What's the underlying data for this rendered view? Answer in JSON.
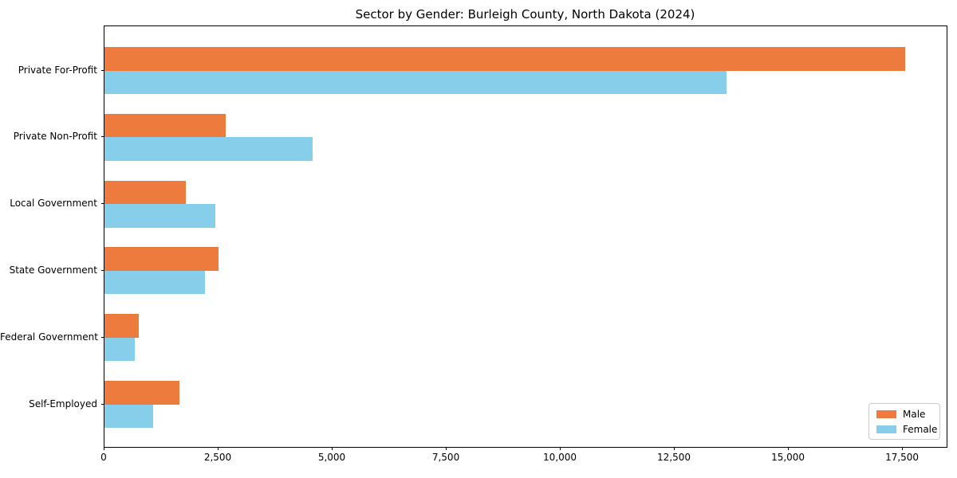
{
  "title": "Sector by Gender: Burleigh County, North Dakota (2024)",
  "chart_data": {
    "type": "bar",
    "orientation": "horizontal",
    "title": "Sector by Gender: Burleigh County, North Dakota (2024)",
    "categories": [
      "Private For-Profit",
      "Private Non-Profit",
      "Local Government",
      "State Government",
      "Federal Government",
      "Self-Employed"
    ],
    "series": [
      {
        "name": "Male",
        "color": "#ec7b3d",
        "values": [
          17550,
          2660,
          1780,
          2500,
          750,
          1640
        ]
      },
      {
        "name": "Female",
        "color": "#87ceeb",
        "values": [
          13640,
          4560,
          2430,
          2200,
          665,
          1070
        ]
      }
    ],
    "xlabel": "",
    "ylabel": "",
    "xlim": [
      0,
      18460
    ],
    "x_ticks": [
      0,
      2500,
      5000,
      7500,
      10000,
      12500,
      15000,
      17500
    ],
    "x_tick_labels": [
      "0",
      "2,500",
      "5,000",
      "7,500",
      "10,000",
      "12,500",
      "15,000",
      "17,500"
    ],
    "grid": false,
    "legend": {
      "position": "lower right",
      "entries": [
        {
          "label": "Male",
          "color": "#ec7b3d"
        },
        {
          "label": "Female",
          "color": "#87ceeb"
        }
      ]
    }
  }
}
